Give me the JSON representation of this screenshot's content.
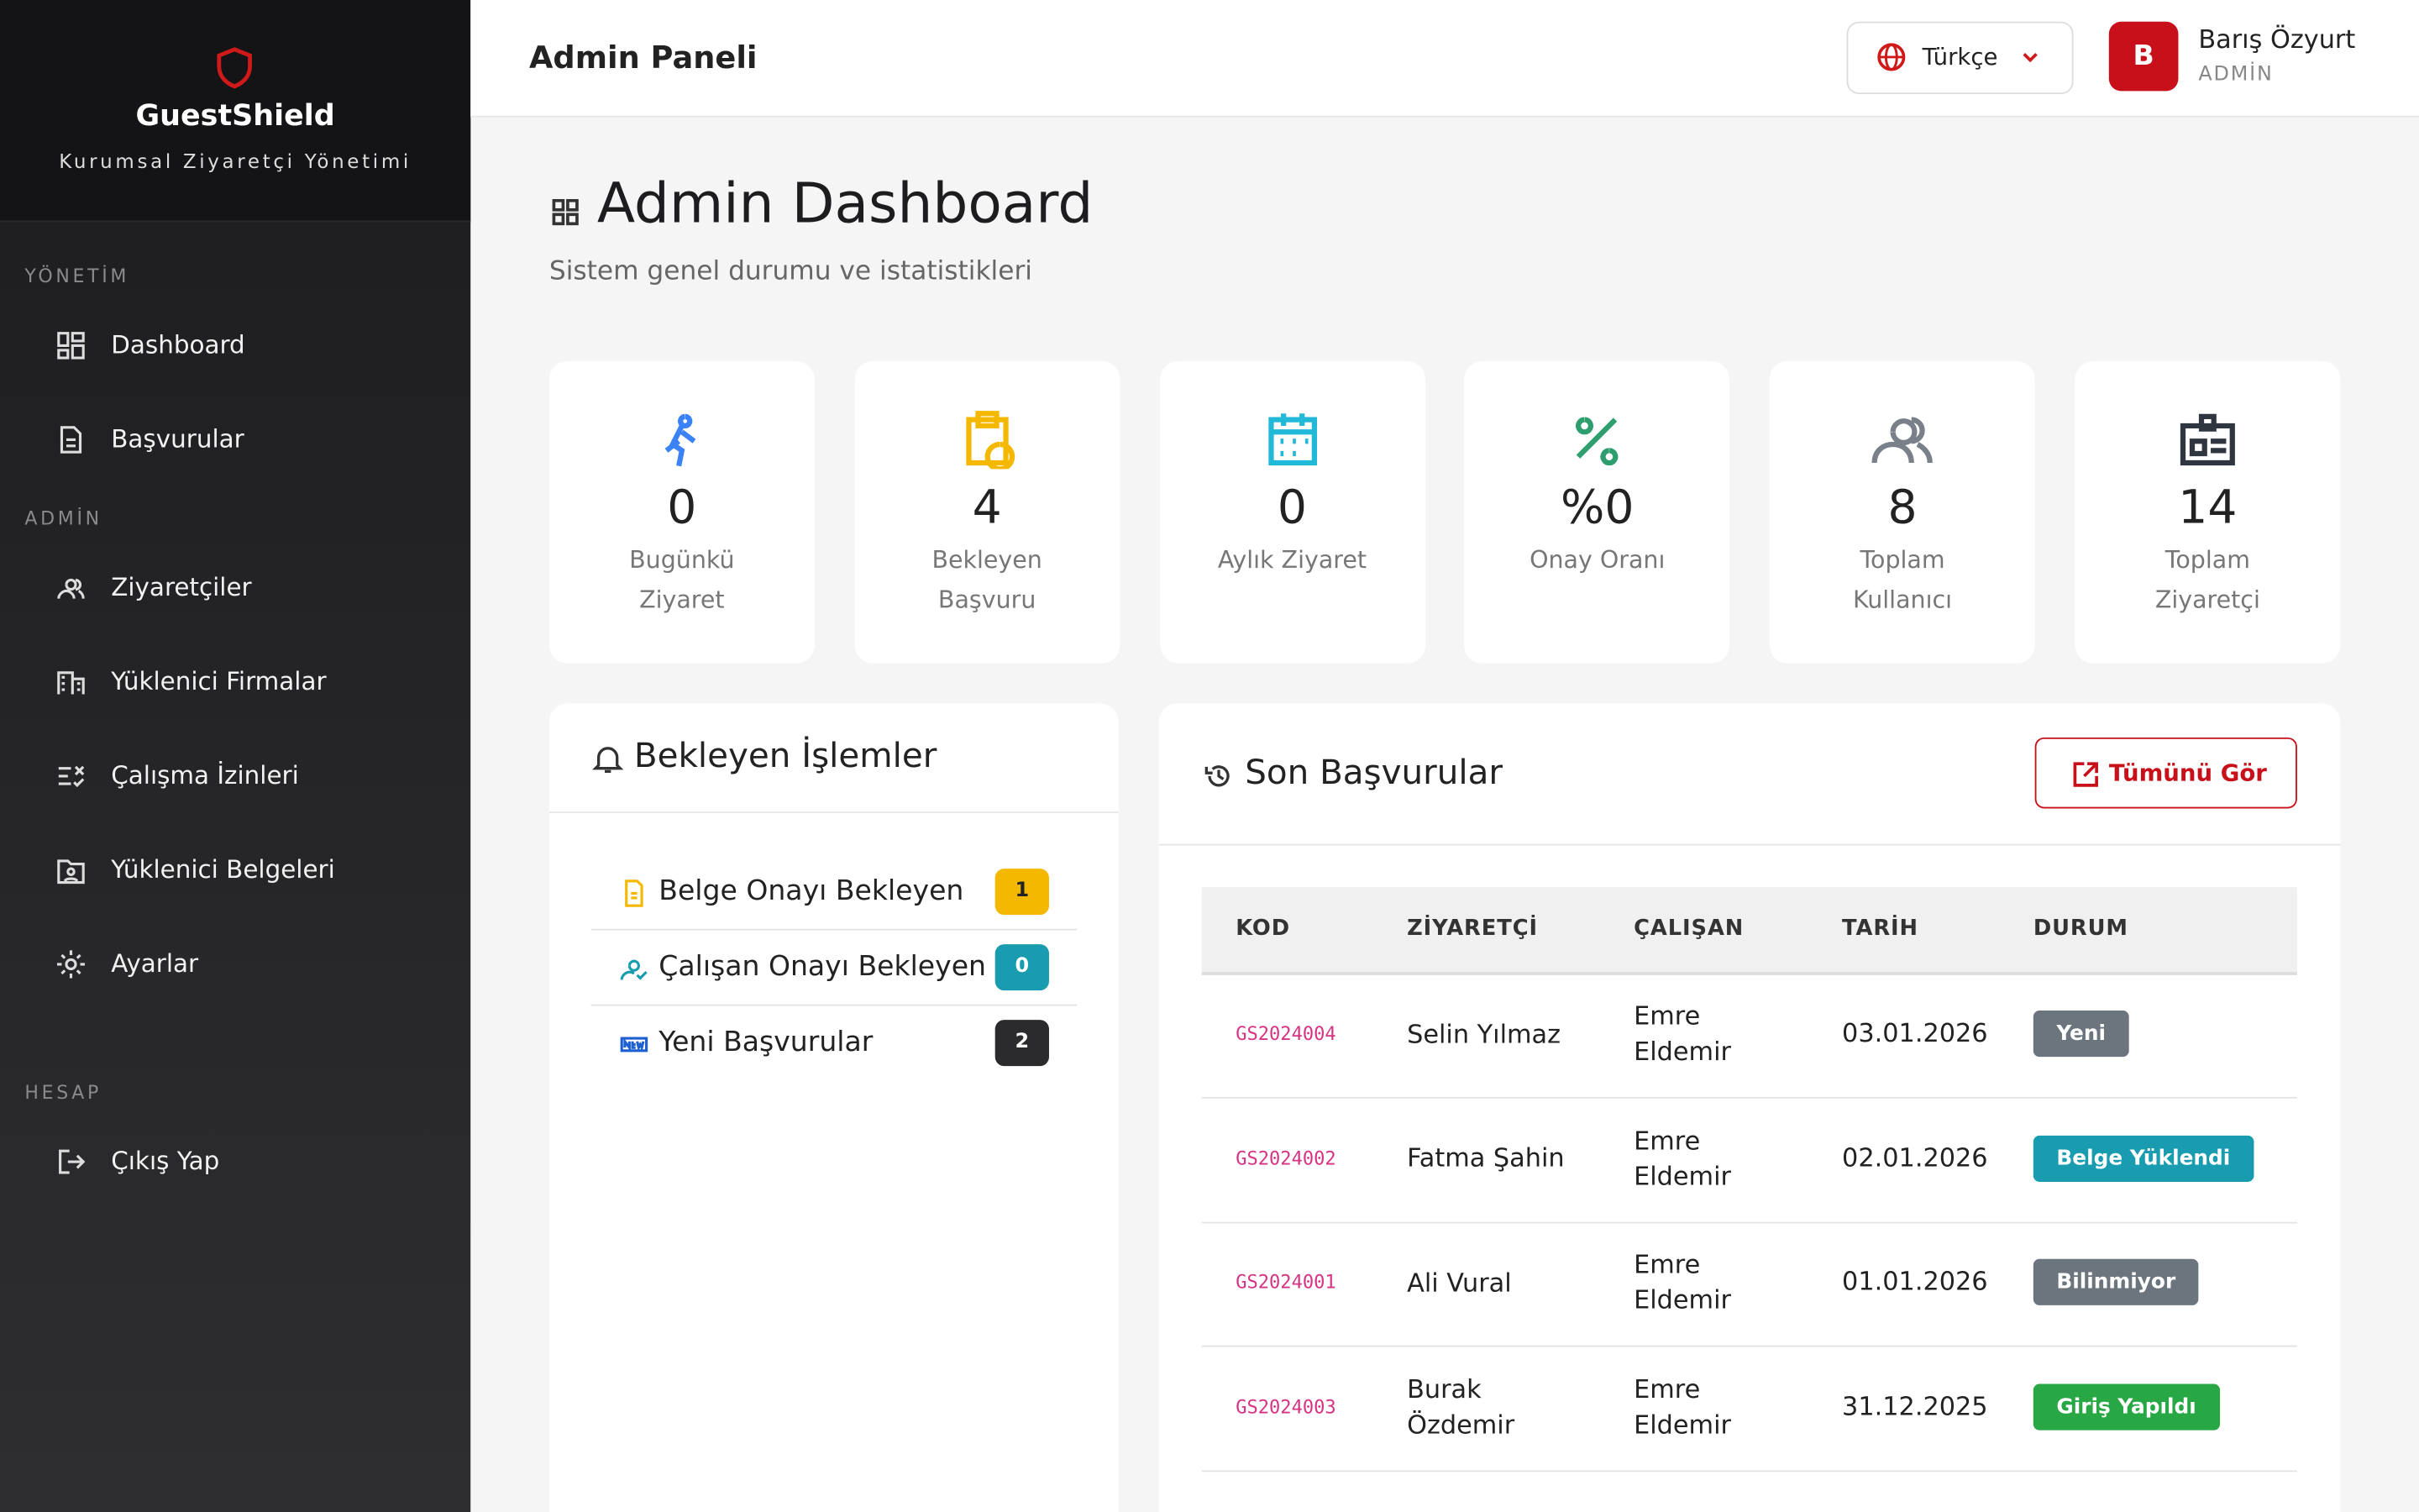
{
  "sidebar": {
    "brand": "GuestShield",
    "tagline": "Kurumsal Ziyaretçi Yönetimi",
    "sections": [
      {
        "title": "YÖNETİM",
        "items": [
          "Dashboard",
          "Başvurular"
        ]
      },
      {
        "title": "ADMİN",
        "items": [
          "Ziyaretçiler",
          "Yüklenici Firmalar",
          "Çalışma İzinleri",
          "Yüklenici Belgeleri",
          "Ayarlar"
        ]
      },
      {
        "title": "HESAP",
        "items": [
          "Çıkış Yap"
        ]
      }
    ]
  },
  "header": {
    "title": "Admin Paneli",
    "language": "Türkçe",
    "user": {
      "initial": "B",
      "name": "Barış Özyurt",
      "role": "ADMİN"
    }
  },
  "page": {
    "title": "Admin Dashboard",
    "subtitle": "Sistem genel durumu ve istatistikleri"
  },
  "stats": [
    {
      "value": 0,
      "label": "Bugünkü Ziyaret",
      "color": "#3b82f6"
    },
    {
      "value": 4,
      "label": "Bekleyen Başvuru",
      "color": "#f5b800"
    },
    {
      "value": 0,
      "label": "Aylık Ziyaret",
      "color": "#22b8d8"
    },
    {
      "value": "%0",
      "label": "Onay Oranı",
      "color": "#2f9e6e"
    },
    {
      "value": 8,
      "label": "Toplam Kullanıcı",
      "color": "#7a8089"
    },
    {
      "value": 14,
      "label": "Toplam Ziyaretçi",
      "color": "#2f3640"
    }
  ],
  "pending": {
    "title": "Bekleyen İşlemler",
    "items": [
      {
        "label": "Belge Onayı Bekleyen",
        "count": 1,
        "color": "#f5b800"
      },
      {
        "label": "Çalışan Onayı Bekleyen",
        "count": 0,
        "color": "#1a9cb0"
      },
      {
        "label": "Yeni Başvurular",
        "count": 2,
        "color": "#2b2b2e"
      }
    ]
  },
  "recent": {
    "title": "Son Başvurular",
    "button": "Tümünü Gör",
    "columns": [
      "KOD",
      "ZİYARETÇİ",
      "ÇALIŞAN",
      "TARİH",
      "DURUM"
    ],
    "rows": [
      {
        "code": "GS2024004",
        "visitor": "Selin Yılmaz",
        "employee": "Emre Eldemir",
        "date": "03.01.2026",
        "status": "Yeni",
        "status_color": "#6c757d"
      },
      {
        "code": "GS2024002",
        "visitor": "Fatma Şahin",
        "employee": "Emre Eldemir",
        "date": "02.01.2026",
        "status": "Belge Yüklendi",
        "status_color": "#1a9cb0"
      },
      {
        "code": "GS2024001",
        "visitor": "Ali Vural",
        "employee": "Emre Eldemir",
        "date": "01.01.2026",
        "status": "Bilinmiyor",
        "status_color": "#6c757d"
      },
      {
        "code": "GS2024003",
        "visitor": "Burak Özdemir",
        "employee": "Emre Eldemir",
        "date": "31.12.2025",
        "status": "Giriş Yapıldı",
        "status_color": "#28a745"
      }
    ]
  }
}
